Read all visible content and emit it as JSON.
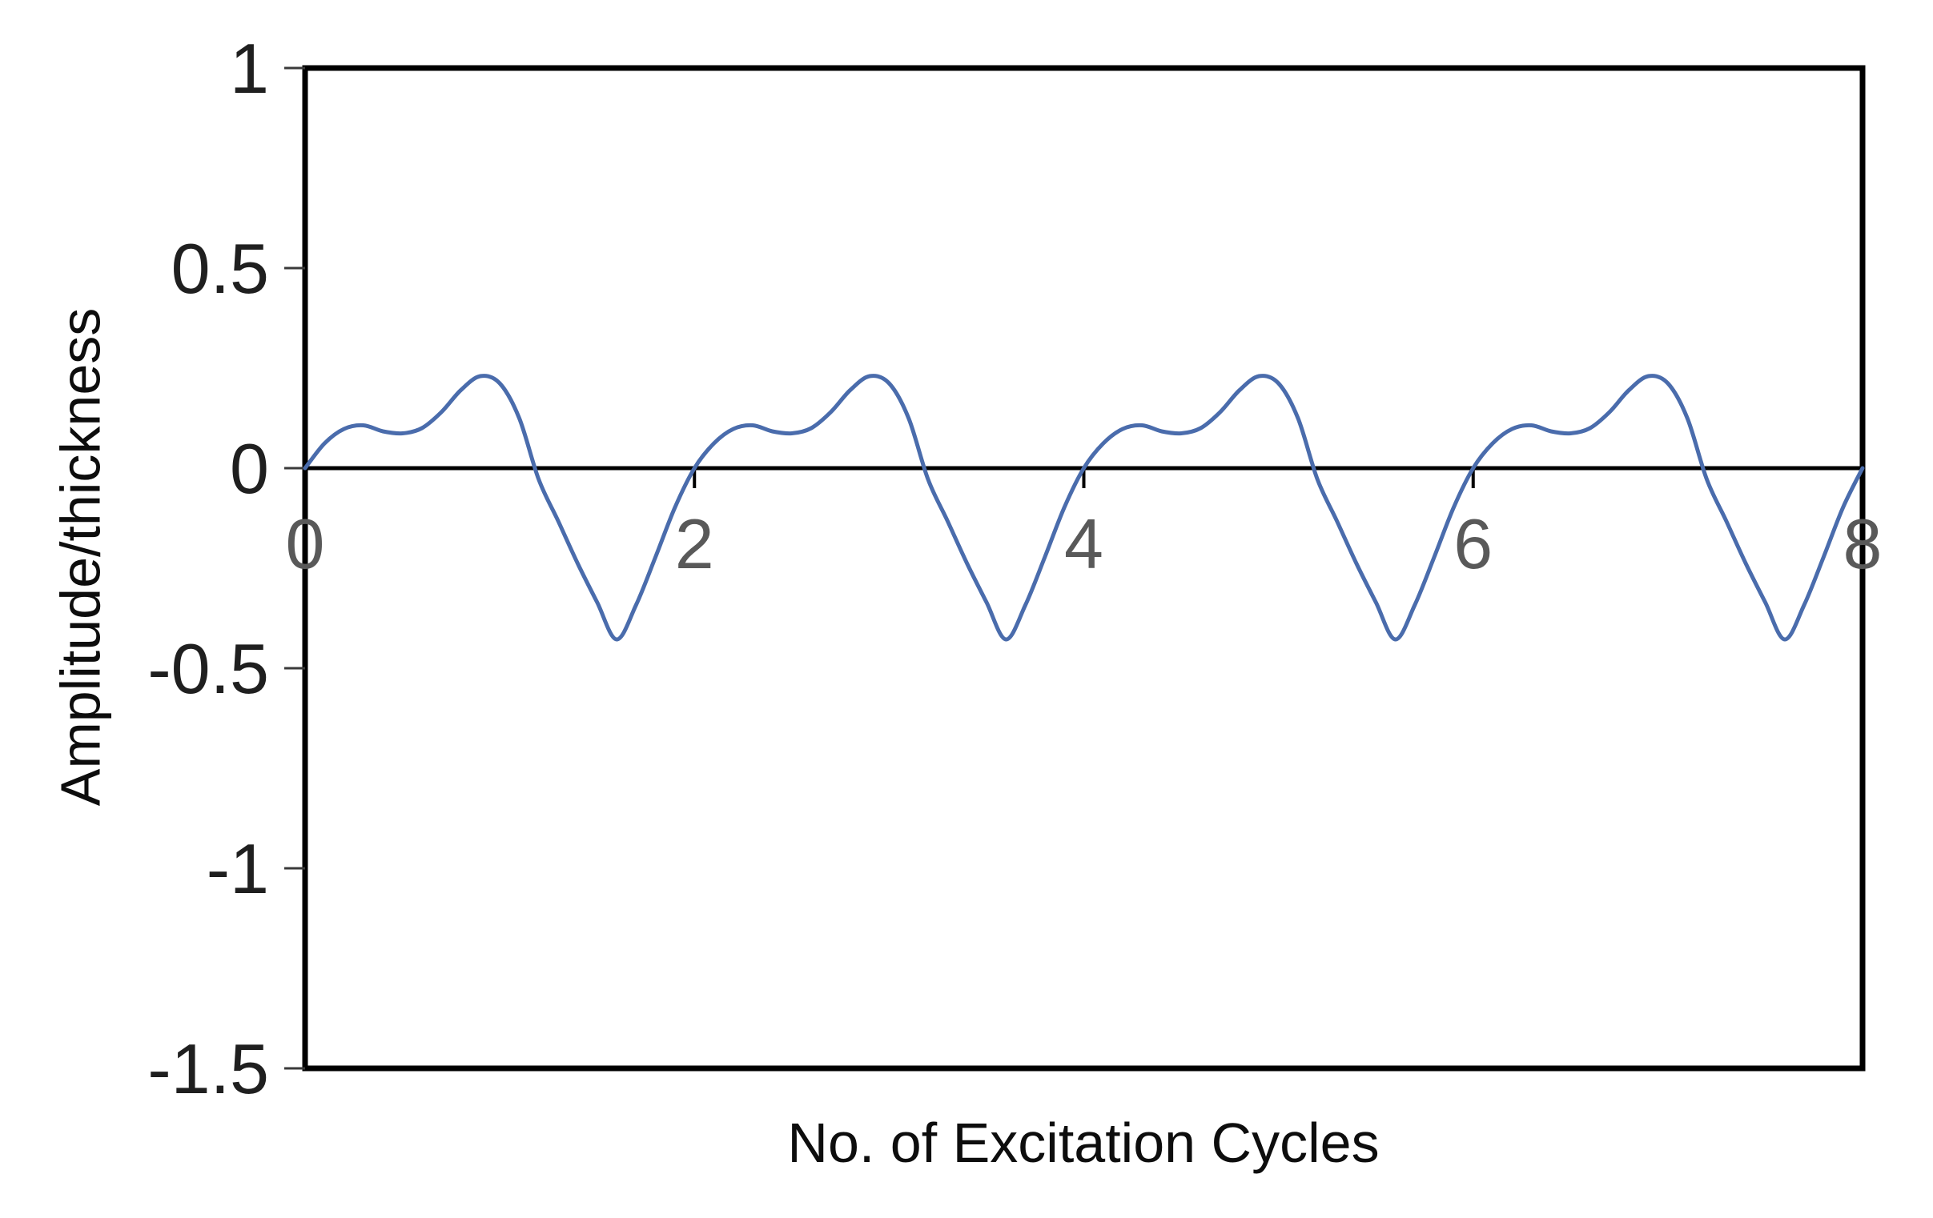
{
  "figure": {
    "xlabel": "No. of Excitation Cycles",
    "ylabel": "Amplitude/thickness"
  },
  "chart_data": {
    "type": "line",
    "title": "",
    "xlabel": "No. of Excitation Cycles",
    "ylabel": "Amplitude/thickness",
    "xlim": [
      0,
      8
    ],
    "ylim": [
      -1.5,
      1
    ],
    "x_ticks": [
      "0",
      "2",
      "4",
      "6",
      "8"
    ],
    "y_ticks": [
      "1",
      "0.5",
      "0",
      "-0.5",
      "-1",
      "-1.5"
    ],
    "grid": false,
    "legend": false,
    "zero_axis_line": true,
    "x_tick_label_position": "at-zero-axis",
    "styles": {
      "plot_border_color": "#000000",
      "zero_line_color": "#000000",
      "x_tick_label_color": "#595959",
      "y_tick_label_color": "#1f1f1f",
      "axis_title_color": "#0d0d0d",
      "background": "#ffffff"
    },
    "series": [
      {
        "name": "Amplitude/thickness",
        "color": "#4a6cac",
        "stroke_width": 5,
        "period": 2,
        "points": [
          [
            0,
            0
          ],
          [
            0.1,
            0.062
          ],
          [
            0.2,
            0.098
          ],
          [
            0.3,
            0.107
          ],
          [
            0.4,
            0.092
          ],
          [
            0.5,
            0.087
          ],
          [
            0.6,
            0.1
          ],
          [
            0.7,
            0.14
          ],
          [
            0.8,
            0.195
          ],
          [
            0.9,
            0.23
          ],
          [
            1,
            0.212
          ],
          [
            1.1,
            0.125
          ],
          [
            1.2,
            -0.028
          ],
          [
            1.3,
            -0.132
          ],
          [
            1.4,
            -0.238
          ],
          [
            1.5,
            -0.335
          ],
          [
            1.6,
            -0.428
          ],
          [
            1.7,
            -0.342
          ],
          [
            1.8,
            -0.222
          ],
          [
            1.9,
            -0.098
          ],
          [
            2,
            0
          ],
          [
            2.1,
            0.062
          ],
          [
            2.2,
            0.098
          ],
          [
            2.3,
            0.107
          ],
          [
            2.4,
            0.092
          ],
          [
            2.5,
            0.087
          ],
          [
            2.6,
            0.1
          ],
          [
            2.7,
            0.14
          ],
          [
            2.8,
            0.195
          ],
          [
            2.9,
            0.23
          ],
          [
            3,
            0.212
          ],
          [
            3.1,
            0.125
          ],
          [
            3.2,
            -0.028
          ],
          [
            3.3,
            -0.132
          ],
          [
            3.4,
            -0.238
          ],
          [
            3.5,
            -0.335
          ],
          [
            3.6,
            -0.428
          ],
          [
            3.7,
            -0.342
          ],
          [
            3.8,
            -0.222
          ],
          [
            3.9,
            -0.098
          ],
          [
            4,
            0
          ],
          [
            4.1,
            0.062
          ],
          [
            4.2,
            0.098
          ],
          [
            4.3,
            0.107
          ],
          [
            4.4,
            0.092
          ],
          [
            4.5,
            0.087
          ],
          [
            4.6,
            0.1
          ],
          [
            4.7,
            0.14
          ],
          [
            4.8,
            0.195
          ],
          [
            4.9,
            0.23
          ],
          [
            5,
            0.212
          ],
          [
            5.1,
            0.125
          ],
          [
            5.2,
            -0.028
          ],
          [
            5.3,
            -0.132
          ],
          [
            5.4,
            -0.238
          ],
          [
            5.5,
            -0.335
          ],
          [
            5.6,
            -0.428
          ],
          [
            5.7,
            -0.342
          ],
          [
            5.8,
            -0.222
          ],
          [
            5.9,
            -0.098
          ],
          [
            6,
            0
          ],
          [
            6.1,
            0.062
          ],
          [
            6.2,
            0.098
          ],
          [
            6.3,
            0.107
          ],
          [
            6.4,
            0.092
          ],
          [
            6.5,
            0.087
          ],
          [
            6.6,
            0.1
          ],
          [
            6.7,
            0.14
          ],
          [
            6.8,
            0.195
          ],
          [
            6.9,
            0.23
          ],
          [
            7,
            0.212
          ],
          [
            7.1,
            0.125
          ],
          [
            7.2,
            -0.028
          ],
          [
            7.3,
            -0.132
          ],
          [
            7.4,
            -0.238
          ],
          [
            7.5,
            -0.335
          ],
          [
            7.6,
            -0.428
          ],
          [
            7.7,
            -0.342
          ],
          [
            7.8,
            -0.222
          ],
          [
            7.9,
            -0.098
          ],
          [
            8,
            0
          ]
        ]
      }
    ]
  }
}
